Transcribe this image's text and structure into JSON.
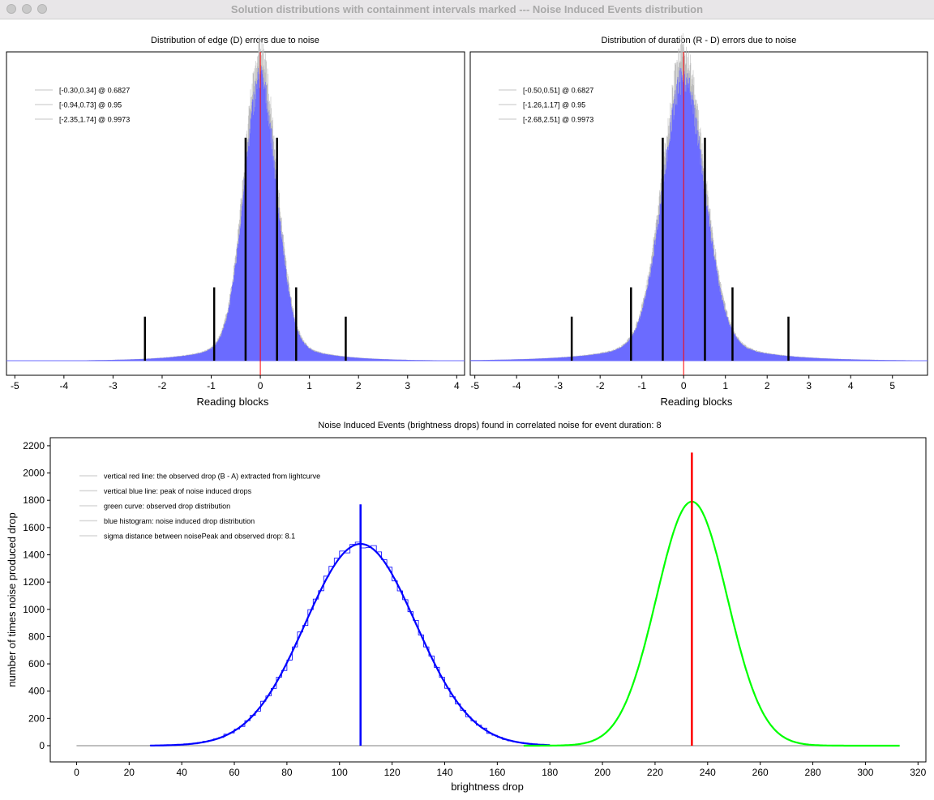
{
  "window": {
    "title": "Solution distributions with containment intervals marked --- Noise Induced Events distribution"
  },
  "colors": {
    "hist_blue": "#6b6bff",
    "hist_gray": "#bdbdbd",
    "red": "#ff0000",
    "blue": "#0000ff",
    "green": "#00ff00",
    "black": "#000000"
  },
  "chart_data": [
    {
      "type": "bar",
      "title": "Distribution of edge (D) errors due to noise",
      "xlabel": "Reading blocks",
      "ylabel": "",
      "xlim": [
        -5.17,
        4.16
      ],
      "xticks": [
        "-5",
        "-4",
        "-3",
        "-2",
        "-1",
        "0",
        "1",
        "2",
        "3",
        "4"
      ],
      "center_line": 0,
      "distribution_model": {
        "center": 0,
        "core_sigma": 0.33,
        "tail_scale": 0.8,
        "tail_weight": 0.12
      },
      "legend": [
        "[-0.30,0.34] @ 0.6827",
        "[-0.94,0.73] @ 0.95",
        "[-2.35,1.74] @ 0.9973"
      ],
      "intervals": [
        {
          "low": -0.3,
          "high": 0.34,
          "level": 0.6827,
          "marker_height": 0.76
        },
        {
          "low": -0.94,
          "high": 0.73,
          "level": 0.95,
          "marker_height": 0.25
        },
        {
          "low": -2.35,
          "high": 1.74,
          "level": 0.9973,
          "marker_height": 0.15
        }
      ]
    },
    {
      "type": "bar",
      "title": "Distribution of duration (R - D) errors due to noise",
      "xlabel": "Reading blocks",
      "ylabel": "",
      "xlim": [
        -5.11,
        5.84
      ],
      "xticks": [
        "-5",
        "-4",
        "-3",
        "-2",
        "-1",
        "0",
        "1",
        "2",
        "3",
        "4",
        "5"
      ],
      "center_line": 0,
      "distribution_model": {
        "center": 0,
        "core_sigma": 0.5,
        "tail_scale": 1.2,
        "tail_weight": 0.13
      },
      "legend": [
        "[-0.50,0.51] @ 0.6827",
        "[-1.26,1.17] @ 0.95",
        "[-2.68,2.51] @ 0.9973"
      ],
      "intervals": [
        {
          "low": -0.5,
          "high": 0.51,
          "level": 0.6827,
          "marker_height": 0.76
        },
        {
          "low": -1.26,
          "high": 1.17,
          "level": 0.95,
          "marker_height": 0.25
        },
        {
          "low": -2.68,
          "high": 2.51,
          "level": 0.9973,
          "marker_height": 0.15
        }
      ]
    },
    {
      "type": "line",
      "title": "Noise Induced Events (brightness drops) found in correlated noise for event duration: 8",
      "xlabel": "brightness drop",
      "ylabel": "number of times noise produced drop",
      "xlim": [
        -10,
        323
      ],
      "ylim": [
        -119,
        2259
      ],
      "xticks": [
        "0",
        "20",
        "40",
        "60",
        "80",
        "100",
        "120",
        "140",
        "160",
        "180",
        "200",
        "220",
        "240",
        "260",
        "280",
        "300",
        "320"
      ],
      "yticks": [
        "0",
        "200",
        "400",
        "600",
        "800",
        "1000",
        "1200",
        "1400",
        "1600",
        "1800",
        "2000",
        "2200"
      ],
      "legend": [
        "vertical red line: the observed drop (B - A) extracted from lightcurve",
        "vertical blue line: peak of noise induced drops",
        "green curve: observed drop distribution",
        "blue histogram: noise induced drop distribution",
        "sigma distance between noisePeak and observed drop: 8.1"
      ],
      "series": [
        {
          "name": "blue histogram",
          "model": "gaussian",
          "mean": 108,
          "sigma": 21,
          "peak": 1480,
          "bin_width": 2,
          "x_range": [
            28,
            180
          ]
        },
        {
          "name": "blue fit curve",
          "model": "gaussian",
          "mean": 108,
          "sigma": 21,
          "peak": 1480,
          "x_range": [
            28,
            180
          ]
        },
        {
          "name": "green curve",
          "model": "gaussian",
          "mean": 234,
          "sigma": 13.5,
          "peak": 1790,
          "x_range": [
            170,
            313
          ]
        },
        {
          "name": "baseline",
          "model": "constant",
          "value": 0,
          "x_range": [
            0,
            313
          ]
        }
      ],
      "vertical_lines": [
        {
          "name": "observed drop",
          "x": 234,
          "top": 2150,
          "color": "red"
        },
        {
          "name": "noise peak",
          "x": 108,
          "top": 1770,
          "color": "blue"
        }
      ],
      "sigma_distance": 8.1
    }
  ]
}
